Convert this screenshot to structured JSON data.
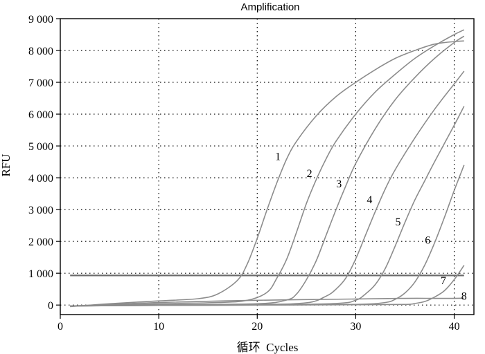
{
  "chart_data": {
    "type": "line",
    "title": "Amplification",
    "xlabel": "循环  Cycles",
    "ylabel": "RFU",
    "xlim": [
      0,
      42
    ],
    "ylim": [
      -300,
      9000
    ],
    "x_ticks": [
      0,
      10,
      20,
      30,
      40
    ],
    "x_tick_labels": [
      "0",
      "10",
      "20",
      "30",
      "40"
    ],
    "y_ticks": [
      0,
      1000,
      2000,
      3000,
      4000,
      5000,
      6000,
      7000,
      8000,
      9000
    ],
    "y_tick_labels": [
      "0",
      "1 000",
      "2 000",
      "3 000",
      "4 000",
      "5 000",
      "6 000",
      "7 000",
      "8 000",
      "9 000"
    ],
    "grid": true,
    "threshold": {
      "value": 930,
      "color": "#6b6b6b"
    },
    "curve_color": "#8c8c8c",
    "series": [
      {
        "name": "1",
        "x": [
          1,
          5,
          10,
          14,
          16,
          18,
          19,
          20,
          21,
          22,
          23,
          24,
          26,
          28,
          30,
          32,
          34,
          36,
          38,
          40,
          41
        ],
        "y": [
          -50,
          40,
          130,
          200,
          350,
          780,
          1300,
          2100,
          3000,
          3850,
          4600,
          5150,
          5950,
          6550,
          7000,
          7400,
          7750,
          8000,
          8200,
          8280,
          8300
        ]
      },
      {
        "name": "2",
        "x": [
          1,
          5,
          10,
          16,
          19,
          21,
          22,
          23,
          24,
          25,
          26,
          27,
          28,
          30,
          32,
          34,
          36,
          38,
          40,
          41
        ],
        "y": [
          -30,
          0,
          40,
          80,
          150,
          400,
          850,
          1450,
          2300,
          3200,
          3950,
          4600,
          5150,
          6000,
          6700,
          7250,
          7750,
          8150,
          8500,
          8650
        ]
      },
      {
        "name": "3",
        "x": [
          1,
          5,
          10,
          20,
          23,
          24,
          25,
          26,
          27,
          28,
          29,
          30,
          32,
          34,
          36,
          38,
          40,
          41
        ],
        "y": [
          -30,
          -10,
          10,
          40,
          160,
          350,
          800,
          1400,
          2200,
          3000,
          3750,
          4450,
          5550,
          6450,
          7150,
          7750,
          8250,
          8450
        ]
      },
      {
        "name": "4",
        "x": [
          1,
          10,
          20,
          25,
          27,
          28,
          29,
          30,
          31,
          32,
          33,
          34,
          36,
          38,
          40,
          41
        ],
        "y": [
          -30,
          0,
          20,
          70,
          280,
          500,
          850,
          1450,
          2200,
          2950,
          3650,
          4250,
          5250,
          6150,
          6950,
          7350
        ]
      },
      {
        "name": "5",
        "x": [
          1,
          10,
          20,
          28,
          30,
          31,
          32,
          33,
          34,
          35,
          36,
          37,
          38,
          40,
          41
        ],
        "y": [
          -30,
          -10,
          0,
          50,
          150,
          350,
          650,
          1150,
          1850,
          2600,
          3300,
          3900,
          4500,
          5650,
          6250
        ]
      },
      {
        "name": "6",
        "x": [
          1,
          10,
          20,
          30,
          33,
          34,
          35,
          36,
          37,
          38,
          39,
          40,
          41
        ],
        "y": [
          -30,
          -10,
          0,
          20,
          80,
          180,
          380,
          720,
          1250,
          1950,
          2750,
          3600,
          4400
        ]
      },
      {
        "name": "7",
        "x": [
          1,
          10,
          20,
          30,
          35,
          36,
          37,
          38,
          39,
          40,
          41
        ],
        "y": [
          -30,
          -10,
          0,
          10,
          20,
          50,
          110,
          250,
          450,
          800,
          1250
        ]
      },
      {
        "name": "8",
        "x": [
          1,
          10,
          20,
          30,
          35,
          38,
          40,
          41
        ],
        "y": [
          -30,
          80,
          150,
          190,
          210,
          210,
          210,
          215
        ]
      }
    ],
    "curve_labels": [
      {
        "text": "1",
        "x": 22.1,
        "y": 4560
      },
      {
        "text": "2",
        "x": 25.3,
        "y": 4020
      },
      {
        "text": "3",
        "x": 28.3,
        "y": 3700
      },
      {
        "text": "4",
        "x": 31.4,
        "y": 3200
      },
      {
        "text": "5",
        "x": 34.3,
        "y": 2500
      },
      {
        "text": "6",
        "x": 37.3,
        "y": 1930
      },
      {
        "text": "7",
        "x": 38.9,
        "y": 660
      },
      {
        "text": "8",
        "x": 41.0,
        "y": 170
      }
    ]
  }
}
